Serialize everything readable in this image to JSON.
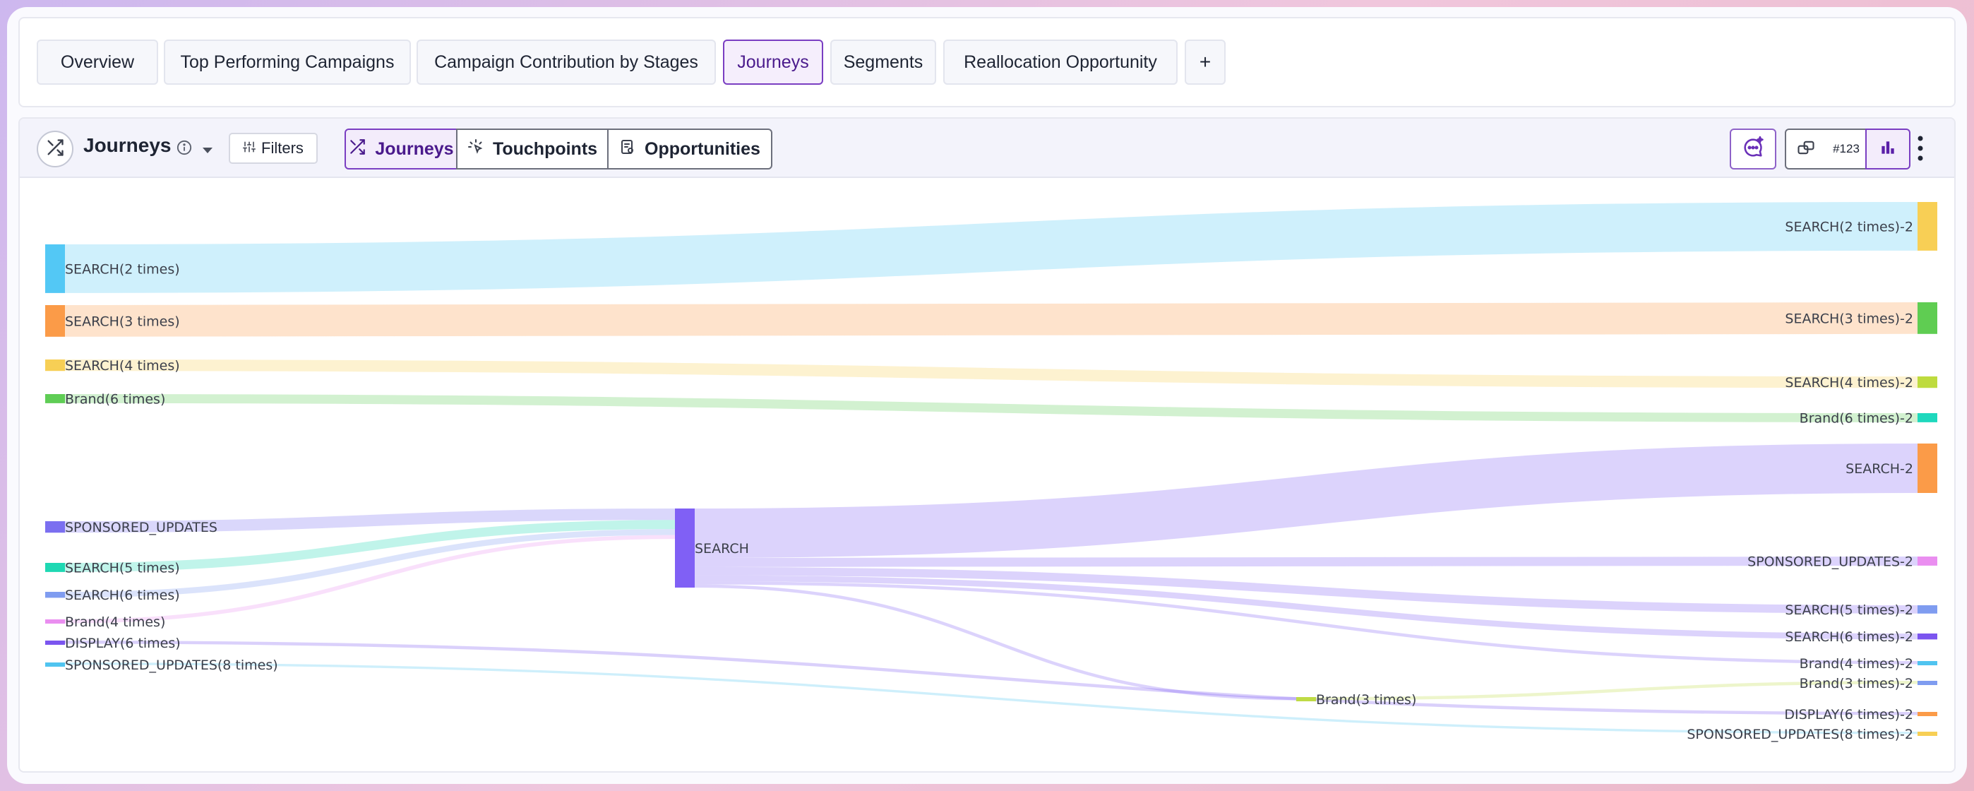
{
  "tabs": [
    {
      "label": "Overview",
      "active": false
    },
    {
      "label": "Top Performing Campaigns",
      "active": false
    },
    {
      "label": "Campaign Contribution by Stages",
      "active": false
    },
    {
      "label": "Journeys",
      "active": true
    },
    {
      "label": "Segments",
      "active": false
    },
    {
      "label": "Reallocation Opportunity",
      "active": false
    },
    {
      "label": "+",
      "active": false
    }
  ],
  "panel": {
    "title": "Journeys",
    "filters_label": "Filters",
    "view_tabs": [
      {
        "label": "Journeys",
        "icon": "shuffle-icon",
        "active": true
      },
      {
        "label": "Touchpoints",
        "icon": "touchpoint-icon",
        "active": false
      },
      {
        "label": "Opportunities",
        "icon": "opportunity-icon",
        "active": false
      }
    ],
    "number_format_label": "#123"
  },
  "colors": {
    "accent": "#7a3ec2",
    "accent_bg": "#f3ecfb"
  },
  "chart_data": {
    "type": "sankey",
    "nodes": [
      {
        "id": "src_s2",
        "label": "SEARCH(2 times)",
        "stage": 0,
        "color": "#53c8f5"
      },
      {
        "id": "src_s3",
        "label": "SEARCH(3 times)",
        "stage": 0,
        "color": "#fb9b48"
      },
      {
        "id": "src_s4",
        "label": "SEARCH(4 times)",
        "stage": 0,
        "color": "#f7cf55"
      },
      {
        "id": "src_b6",
        "label": "Brand(6 times)",
        "stage": 0,
        "color": "#5fcd55"
      },
      {
        "id": "src_su",
        "label": "SPONSORED_UPDATES",
        "stage": 0,
        "color": "#7b6ff0"
      },
      {
        "id": "src_s5",
        "label": "SEARCH(5 times)",
        "stage": 0,
        "color": "#1ed8b3"
      },
      {
        "id": "src_s6",
        "label": "SEARCH(6 times)",
        "stage": 0,
        "color": "#7f9cf0"
      },
      {
        "id": "src_b4",
        "label": "Brand(4 times)",
        "stage": 0,
        "color": "#ea8ef0"
      },
      {
        "id": "src_d6",
        "label": "DISPLAY(6 times)",
        "stage": 0,
        "color": "#7b55ef"
      },
      {
        "id": "src_su8",
        "label": "SPONSORED_UPDATES(8 times)",
        "stage": 0,
        "color": "#50c4f0"
      },
      {
        "id": "mid_search",
        "label": "SEARCH",
        "stage": 1,
        "color": "#8060f5"
      },
      {
        "id": "mid_b3",
        "label": "Brand(3 times)",
        "stage": 2,
        "color": "#bfdb45"
      },
      {
        "id": "t_s2",
        "label": "SEARCH(2 times)-2",
        "stage": 3,
        "color": "#f8cf55"
      },
      {
        "id": "t_s3",
        "label": "SEARCH(3 times)-2",
        "stage": 3,
        "color": "#5fcd52"
      },
      {
        "id": "t_s4",
        "label": "SEARCH(4 times)-2",
        "stage": 3,
        "color": "#bedb3e"
      },
      {
        "id": "t_b6",
        "label": "Brand(6 times)-2",
        "stage": 3,
        "color": "#1ed8bd"
      },
      {
        "id": "t_search",
        "label": "SEARCH-2",
        "stage": 3,
        "color": "#fb9b48"
      },
      {
        "id": "t_su",
        "label": "SPONSORED_UPDATES-2",
        "stage": 3,
        "color": "#ea8ef0"
      },
      {
        "id": "t_s5",
        "label": "SEARCH(5 times)-2",
        "stage": 3,
        "color": "#7f9cf0"
      },
      {
        "id": "t_s6",
        "label": "SEARCH(6 times)-2",
        "stage": 3,
        "color": "#7b55ef"
      },
      {
        "id": "t_b4",
        "label": "Brand(4 times)-2",
        "stage": 3,
        "color": "#50c4f0"
      },
      {
        "id": "t_b3",
        "label": "Brand(3 times)-2",
        "stage": 3,
        "color": "#7f9cf0"
      },
      {
        "id": "t_d6",
        "label": "DISPLAY(6 times)-2",
        "stage": 3,
        "color": "#fb9b48"
      },
      {
        "id": "t_su8",
        "label": "SPONSORED_UPDATES(8 times)-2",
        "stage": 3,
        "color": "#f7cf55"
      }
    ],
    "links": [
      {
        "source": "src_s2",
        "target": "t_s2",
        "value": 123
      },
      {
        "source": "src_s3",
        "target": "t_s3",
        "value": 80
      },
      {
        "source": "src_s4",
        "target": "t_s4",
        "value": 29
      },
      {
        "source": "src_b6",
        "target": "t_b6",
        "value": 23
      },
      {
        "source": "src_su",
        "target": "mid_search",
        "value": 29
      },
      {
        "source": "src_s5",
        "target": "mid_search",
        "value": 23
      },
      {
        "source": "src_s6",
        "target": "mid_search",
        "value": 15
      },
      {
        "source": "src_b4",
        "target": "mid_search",
        "value": 10
      },
      {
        "source": "src_d6",
        "target": "t_d6",
        "value": 8
      },
      {
        "source": "src_su8",
        "target": "t_su8",
        "value": 6
      },
      {
        "source": "mid_search",
        "target": "t_search",
        "value": 125
      },
      {
        "source": "mid_search",
        "target": "t_su",
        "value": 23
      },
      {
        "source": "mid_search",
        "target": "t_s5",
        "value": 21
      },
      {
        "source": "mid_search",
        "target": "t_s6",
        "value": 15
      },
      {
        "source": "mid_search",
        "target": "t_b4",
        "value": 8
      },
      {
        "source": "mid_search",
        "target": "mid_b3",
        "value": 8
      },
      {
        "source": "mid_b3",
        "target": "t_b3",
        "value": 8
      }
    ]
  }
}
